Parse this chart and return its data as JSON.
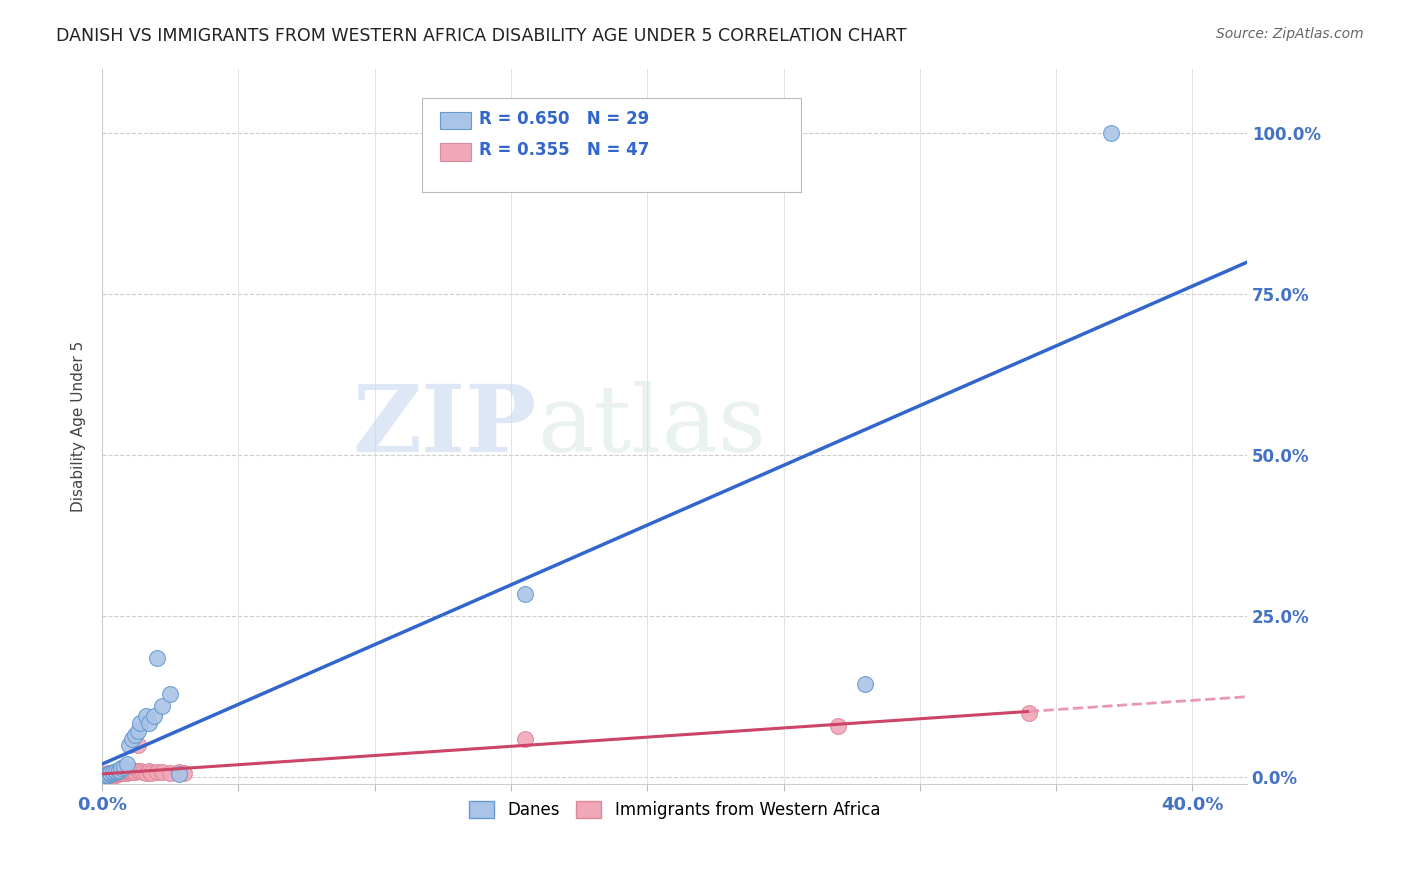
{
  "title": "DANISH VS IMMIGRANTS FROM WESTERN AFRICA DISABILITY AGE UNDER 5 CORRELATION CHART",
  "source": "Source: ZipAtlas.com",
  "ylabel": "Disability Age Under 5",
  "xlim": [
    0.0,
    0.42
  ],
  "ylim": [
    -0.01,
    1.1
  ],
  "yticks": [
    0.0,
    0.25,
    0.5,
    0.75,
    1.0
  ],
  "ytick_labels": [
    "0.0%",
    "25.0%",
    "50.0%",
    "75.0%",
    "100.0%"
  ],
  "xtick_vals": [
    0.0,
    0.05,
    0.1,
    0.15,
    0.2,
    0.25,
    0.3,
    0.35,
    0.4
  ],
  "right_ytick_color": "#4472c4",
  "danes_color": "#aac4e8",
  "danes_edge_color": "#6699cc",
  "immig_color": "#f0a8b8",
  "immig_edge_color": "#dd8899",
  "danes_line_color": "#3366cc",
  "immig_line_solid_color": "#cc4466",
  "immig_line_dash_color": "#e898b0",
  "danes_R": 0.65,
  "danes_N": 29,
  "immig_R": 0.355,
  "immig_N": 47,
  "legend_label_danes": "Danes",
  "legend_label_immig": "Immigrants from Western Africa",
  "danes_x": [
    0.001,
    0.002,
    0.002,
    0.003,
    0.003,
    0.004,
    0.004,
    0.005,
    0.005,
    0.006,
    0.006,
    0.007,
    0.008,
    0.009,
    0.01,
    0.011,
    0.012,
    0.013,
    0.014,
    0.016,
    0.017,
    0.019,
    0.02,
    0.022,
    0.025,
    0.028,
    0.155,
    0.28,
    0.37
  ],
  "danes_y": [
    0.003,
    0.003,
    0.004,
    0.005,
    0.006,
    0.006,
    0.008,
    0.008,
    0.01,
    0.01,
    0.012,
    0.015,
    0.016,
    0.02,
    0.05,
    0.06,
    0.065,
    0.072,
    0.085,
    0.095,
    0.085,
    0.095,
    0.185,
    0.11,
    0.13,
    0.005,
    0.285,
    0.145,
    1.0
  ],
  "immig_x": [
    0.001,
    0.001,
    0.001,
    0.002,
    0.002,
    0.002,
    0.002,
    0.003,
    0.003,
    0.003,
    0.004,
    0.004,
    0.004,
    0.004,
    0.005,
    0.005,
    0.005,
    0.006,
    0.006,
    0.007,
    0.007,
    0.007,
    0.008,
    0.008,
    0.008,
    0.009,
    0.009,
    0.01,
    0.01,
    0.011,
    0.011,
    0.012,
    0.013,
    0.013,
    0.014,
    0.015,
    0.016,
    0.017,
    0.018,
    0.02,
    0.022,
    0.025,
    0.028,
    0.03,
    0.155,
    0.27,
    0.34
  ],
  "immig_y": [
    0.003,
    0.004,
    0.005,
    0.003,
    0.004,
    0.005,
    0.006,
    0.003,
    0.005,
    0.006,
    0.004,
    0.005,
    0.006,
    0.007,
    0.004,
    0.005,
    0.007,
    0.006,
    0.008,
    0.007,
    0.009,
    0.01,
    0.006,
    0.008,
    0.01,
    0.007,
    0.01,
    0.008,
    0.01,
    0.008,
    0.011,
    0.008,
    0.01,
    0.05,
    0.009,
    0.008,
    0.006,
    0.009,
    0.007,
    0.008,
    0.008,
    0.006,
    0.008,
    0.007,
    0.06,
    0.08,
    0.1
  ],
  "watermark_zip": "ZIP",
  "watermark_atlas": "atlas",
  "background_color": "#ffffff",
  "grid_color": "#cccccc"
}
